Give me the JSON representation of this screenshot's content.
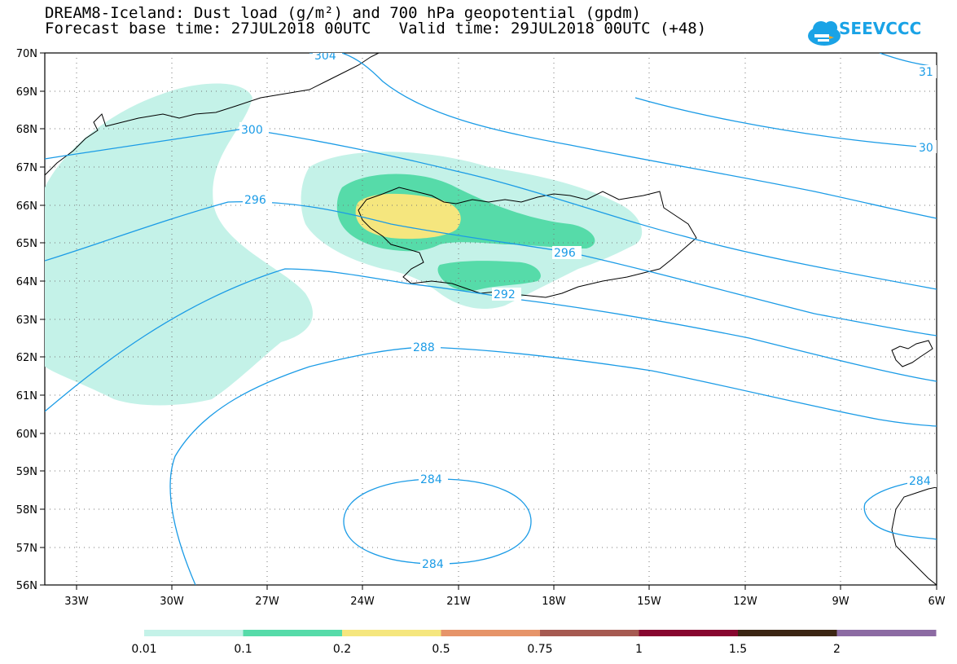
{
  "header": {
    "title_line1": "DREAM8-Iceland: Dust load (g/m²) and 700 hPa geopotential (gpdm)",
    "title_line2": "Forecast base time: 27JUL2018 00UTC   Valid time: 29JUL2018 00UTC (+48)"
  },
  "logo": {
    "text": "SEEVCCC",
    "icon": "cloud-icon",
    "color": "#1aa3e6"
  },
  "map": {
    "lat_labels": [
      "70N",
      "69N",
      "68N",
      "67N",
      "66N",
      "65N",
      "64N",
      "63N",
      "62N",
      "61N",
      "60N",
      "59N",
      "58N",
      "57N",
      "56N"
    ],
    "lon_labels": [
      "33W",
      "30W",
      "27W",
      "24W",
      "21W",
      "18W",
      "15W",
      "12W",
      "9W",
      "6W"
    ],
    "contour_labels": [
      "304",
      "31",
      "300",
      "30",
      "296",
      "296",
      "292",
      "288",
      "284",
      "284",
      "284"
    ],
    "contour_color": "#1a9be6"
  },
  "colorbar": {
    "labels": [
      "0.01",
      "0.1",
      "0.2",
      "0.5",
      "0.75",
      "1",
      "1.5",
      "2"
    ],
    "colors": [
      "#c4f2e8",
      "#56dba9",
      "#f5e67e",
      "#e69469",
      "#a65a51",
      "#87072f",
      "#3c2613",
      "#8c6ba3"
    ]
  }
}
